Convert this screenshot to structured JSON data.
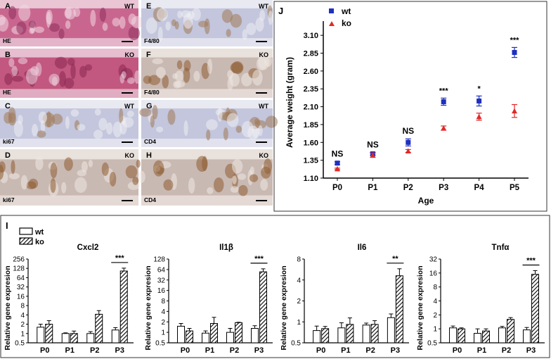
{
  "histology": {
    "tiles": [
      {
        "letter": "A",
        "stain": "HE",
        "genotype": "WT",
        "theme": "he_wt"
      },
      {
        "letter": "B",
        "stain": "HE",
        "genotype": "KO",
        "theme": "he_ko"
      },
      {
        "letter": "C",
        "stain": "ki67",
        "genotype": "WT",
        "theme": "ihc_wt"
      },
      {
        "letter": "D",
        "stain": "ki67",
        "genotype": "KO",
        "theme": "ihc_ko"
      },
      {
        "letter": "E",
        "stain": "F4/80",
        "genotype": "WT",
        "theme": "ihc_wt"
      },
      {
        "letter": "F",
        "stain": "F4/80",
        "genotype": "KO",
        "theme": "ihc_ko"
      },
      {
        "letter": "G",
        "stain": "CD4",
        "genotype": "WT",
        "theme": "ihc_wt"
      },
      {
        "letter": "H",
        "stain": "CD4",
        "genotype": "KO",
        "theme": "ihc_ko"
      }
    ],
    "colors": {
      "he_wt": {
        "bg": "#c9668f",
        "fg": "#8e2e5d",
        "light": "#f0d7e2"
      },
      "he_ko": {
        "bg": "#c2577f",
        "fg": "#8a2852",
        "light": "#ecd0dd"
      },
      "ihc_wt": {
        "bg": "#c3c6dc",
        "fg": "#a07a58",
        "light": "#eeeef4"
      },
      "ihc_ko": {
        "bg": "#c9b9b3",
        "fg": "#8e5c32",
        "light": "#efe7e2"
      }
    }
  },
  "chart_data": [
    {
      "panel": "J",
      "type": "scatter",
      "categories": [
        "P0",
        "P1",
        "P2",
        "P3",
        "P4",
        "P5"
      ],
      "xlabel": "Age",
      "ylabel": "Average weight (gram)",
      "ylim": [
        1.1,
        3.22
      ],
      "yticks": [
        "1.10",
        "1.35",
        "1.60",
        "1.85",
        "2.10",
        "2.35",
        "2.60",
        "2.85",
        "3.10"
      ],
      "legend": [
        {
          "name": "wt",
          "marker": "square",
          "color": "#1f2fbf"
        },
        {
          "name": "ko",
          "marker": "triangle",
          "color": "#e02a2a"
        }
      ],
      "series": [
        {
          "name": "wt",
          "values": [
            1.31,
            1.44,
            1.6,
            2.17,
            2.18,
            2.86
          ],
          "errors": [
            0.02,
            0.02,
            0.05,
            0.05,
            0.07,
            0.07
          ]
        },
        {
          "name": "ko",
          "values": [
            1.23,
            1.42,
            1.48,
            1.8,
            1.96,
            2.04
          ],
          "errors": [
            0.01,
            0.03,
            0.02,
            0.03,
            0.05,
            0.09
          ]
        }
      ],
      "annotations": [
        "NS",
        "NS",
        "NS",
        "***",
        "*",
        "***"
      ]
    },
    {
      "panel": "I",
      "type": "bar",
      "legend": [
        {
          "name": "wt",
          "fill": "open"
        },
        {
          "name": "ko",
          "fill": "hatched"
        }
      ],
      "categories": [
        "P0",
        "P1",
        "P2",
        "P3"
      ],
      "ylabel": "Relative gene expresion",
      "subplots": [
        {
          "title": "Cxcl2",
          "ylim": [
            0.5,
            256
          ],
          "yticks": [
            "0.5",
            "1",
            "2",
            "4",
            "8",
            "16",
            "32",
            "64",
            "128",
            "256"
          ],
          "series": [
            {
              "name": "wt",
              "values": [
                1.6,
                1.0,
                1.0,
                1.3
              ],
              "errors": [
                0.4,
                0.05,
                0.15,
                0.25
              ]
            },
            {
              "name": "ko",
              "values": [
                2.0,
                1.0,
                4.2,
                105
              ],
              "errors": [
                0.6,
                0.2,
                1.3,
                25
              ]
            }
          ],
          "significance": "***"
        },
        {
          "title": "Il1β",
          "ylim": [
            0.5,
            128
          ],
          "yticks": [
            "0.5",
            "1",
            "2",
            "4",
            "8",
            "16",
            "32",
            "64",
            "128"
          ],
          "series": [
            {
              "name": "wt",
              "values": [
                1.5,
                0.95,
                1.0,
                1.3
              ],
              "errors": [
                0.3,
                0.15,
                0.3,
                0.25
              ]
            },
            {
              "name": "ko",
              "values": [
                1.1,
                1.8,
                1.9,
                55
              ],
              "errors": [
                0.2,
                0.9,
                0.05,
                12
              ]
            }
          ],
          "significance": "***"
        },
        {
          "title": "Il6",
          "ylim": [
            0.5,
            8
          ],
          "yticks": [
            "0.5",
            "1",
            "2",
            "4",
            "8"
          ],
          "series": [
            {
              "name": "wt",
              "values": [
                0.75,
                0.82,
                0.9,
                1.15
              ],
              "errors": [
                0.12,
                0.15,
                0.06,
                0.15
              ]
            },
            {
              "name": "ko",
              "values": [
                0.8,
                0.92,
                0.92,
                4.6
              ],
              "errors": [
                0.06,
                0.22,
                0.12,
                1.2
              ]
            }
          ],
          "significance": "**"
        },
        {
          "title": "Tnfα",
          "ylim": [
            0.5,
            32
          ],
          "yticks": [
            "0.5",
            "1",
            "2",
            "4",
            "8",
            "16",
            "32"
          ],
          "series": [
            {
              "name": "wt",
              "values": [
                1.05,
                0.8,
                1.05,
                0.95
              ],
              "errors": [
                0.1,
                0.2,
                0.08,
                0.12
              ]
            },
            {
              "name": "ko",
              "values": [
                1.0,
                0.9,
                1.6,
                15
              ],
              "errors": [
                0.05,
                0.1,
                0.15,
                3
              ]
            }
          ],
          "significance": "***"
        }
      ]
    }
  ],
  "labels": {
    "panel_j": "J",
    "panel_i": "I"
  }
}
